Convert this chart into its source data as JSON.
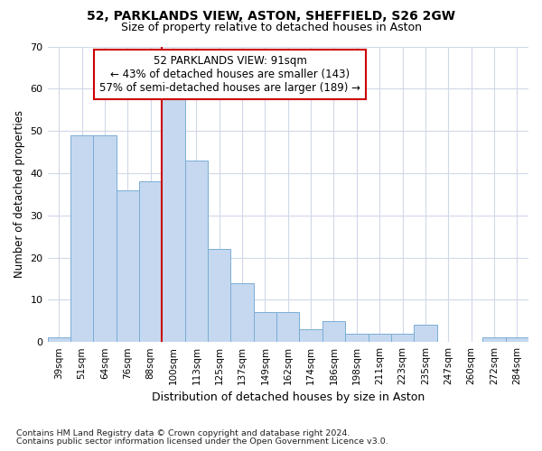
{
  "title": "52, PARKLANDS VIEW, ASTON, SHEFFIELD, S26 2GW",
  "subtitle": "Size of property relative to detached houses in Aston",
  "xlabel": "Distribution of detached houses by size in Aston",
  "ylabel": "Number of detached properties",
  "categories": [
    "39sqm",
    "51sqm",
    "64sqm",
    "76sqm",
    "88sqm",
    "100sqm",
    "113sqm",
    "125sqm",
    "137sqm",
    "149sqm",
    "162sqm",
    "174sqm",
    "186sqm",
    "198sqm",
    "211sqm",
    "223sqm",
    "235sqm",
    "247sqm",
    "260sqm",
    "272sqm",
    "284sqm"
  ],
  "values": [
    1,
    49,
    49,
    36,
    38,
    58,
    43,
    22,
    14,
    7,
    7,
    3,
    5,
    2,
    2,
    2,
    4,
    0,
    0,
    1,
    1
  ],
  "bar_color": "#c5d8f0",
  "bar_edge_color": "#7aadd4",
  "property_label": "52 PARKLANDS VIEW: 91sqm",
  "annotation_line1": "← 43% of detached houses are smaller (143)",
  "annotation_line2": "57% of semi-detached houses are larger (189) →",
  "vline_color": "#cc0000",
  "vline_x": 4.5,
  "ylim": [
    0,
    70
  ],
  "yticks": [
    0,
    10,
    20,
    30,
    40,
    50,
    60,
    70
  ],
  "footnote1": "Contains HM Land Registry data © Crown copyright and database right 2024.",
  "footnote2": "Contains public sector information licensed under the Open Government Licence v3.0.",
  "bg_color": "#ffffff",
  "plot_bg_color": "#ffffff",
  "annotation_box_edge": "#cc0000",
  "grid_color": "#d0d8e8",
  "title_fontsize": 10,
  "subtitle_fontsize": 9
}
